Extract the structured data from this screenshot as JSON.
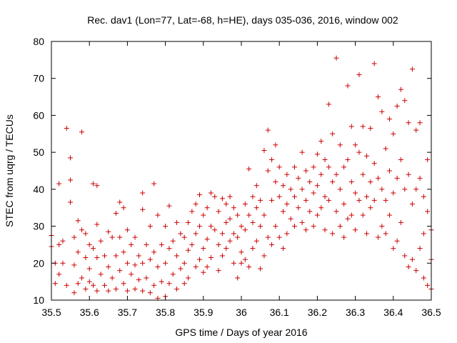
{
  "chart_data": {
    "type": "scatter",
    "title": "Rec. dav1 (Lon=77, Lat=-68, h=HE), days 035-036, 2016, window 002",
    "xlabel": "GPS time / Days of year 2016",
    "ylabel": "STEC from uqrg / TECUs",
    "xlim": [
      35.5,
      36.5
    ],
    "ylim": [
      10,
      80
    ],
    "xticks": [
      35.5,
      35.6,
      35.7,
      35.8,
      35.9,
      36,
      36.1,
      36.2,
      36.3,
      36.4,
      36.5
    ],
    "xtick_labels": [
      "35.5",
      "35.6",
      "35.7",
      "35.8",
      "35.9",
      "36",
      "36.1",
      "36.2",
      "36.3",
      "36.4",
      "36.5"
    ],
    "yticks": [
      10,
      20,
      30,
      40,
      50,
      60,
      70,
      80
    ],
    "ytick_labels": [
      "10",
      "20",
      "30",
      "40",
      "50",
      "60",
      "70",
      "80"
    ],
    "grid": false,
    "legend": "none",
    "marker": "+",
    "color": "#cc0000",
    "series": [
      {
        "points": [
          [
            35.5,
            27.5
          ],
          [
            35.5,
            24.5
          ],
          [
            35.51,
            20
          ],
          [
            35.51,
            14.5
          ],
          [
            35.52,
            41.5
          ],
          [
            35.52,
            25
          ],
          [
            35.52,
            17
          ],
          [
            35.53,
            26
          ],
          [
            35.53,
            20
          ],
          [
            35.54,
            56.5
          ],
          [
            35.54,
            14
          ],
          [
            35.55,
            48.5
          ],
          [
            35.55,
            42.5
          ],
          [
            35.55,
            36.5
          ],
          [
            35.56,
            27
          ],
          [
            35.56,
            19.5
          ],
          [
            35.56,
            12
          ],
          [
            35.57,
            31.5
          ],
          [
            35.57,
            23
          ],
          [
            35.57,
            14.5
          ],
          [
            35.58,
            55.5
          ],
          [
            35.58,
            29
          ],
          [
            35.58,
            16
          ],
          [
            35.59,
            28
          ],
          [
            35.59,
            21.5
          ],
          [
            35.59,
            13
          ],
          [
            35.6,
            25
          ],
          [
            35.6,
            18.5
          ],
          [
            35.6,
            15
          ],
          [
            35.61,
            41.5
          ],
          [
            35.61,
            24
          ],
          [
            35.61,
            14
          ],
          [
            35.62,
            41
          ],
          [
            35.62,
            30.5
          ],
          [
            35.62,
            21.5
          ],
          [
            35.62,
            12.5
          ],
          [
            35.63,
            26
          ],
          [
            35.63,
            17
          ],
          [
            35.64,
            22
          ],
          [
            35.64,
            14
          ],
          [
            35.65,
            28.5
          ],
          [
            35.65,
            19
          ],
          [
            35.65,
            12.5
          ],
          [
            35.66,
            27
          ],
          [
            35.66,
            16
          ],
          [
            35.67,
            33.5
          ],
          [
            35.67,
            22
          ],
          [
            35.67,
            13
          ],
          [
            35.68,
            36.5
          ],
          [
            35.68,
            27
          ],
          [
            35.68,
            18
          ],
          [
            35.69,
            35
          ],
          [
            35.69,
            23
          ],
          [
            35.69,
            14.5
          ],
          [
            35.7,
            29
          ],
          [
            35.7,
            20
          ],
          [
            35.7,
            12.5
          ],
          [
            35.71,
            25
          ],
          [
            35.71,
            17
          ],
          [
            35.72,
            27
          ],
          [
            35.72,
            19.5
          ],
          [
            35.72,
            13
          ],
          [
            35.73,
            22
          ],
          [
            35.73,
            15.5
          ],
          [
            35.74,
            39
          ],
          [
            35.74,
            34.5
          ],
          [
            35.74,
            20
          ],
          [
            35.74,
            12.5
          ],
          [
            35.75,
            25
          ],
          [
            35.75,
            16
          ],
          [
            35.76,
            30
          ],
          [
            35.76,
            21
          ],
          [
            35.76,
            12
          ],
          [
            35.77,
            41.5
          ],
          [
            35.77,
            23
          ],
          [
            35.77,
            14
          ],
          [
            35.78,
            33
          ],
          [
            35.78,
            19
          ],
          [
            35.78,
            10.5
          ],
          [
            35.79,
            25
          ],
          [
            35.79,
            15
          ],
          [
            35.8,
            30
          ],
          [
            35.8,
            20
          ],
          [
            35.8,
            11
          ],
          [
            35.81,
            35.5
          ],
          [
            35.81,
            24
          ],
          [
            35.81,
            14.5
          ],
          [
            35.82,
            26
          ],
          [
            35.82,
            17
          ],
          [
            35.83,
            31
          ],
          [
            35.83,
            22
          ],
          [
            35.83,
            13
          ],
          [
            35.84,
            28
          ],
          [
            35.84,
            18.5
          ],
          [
            35.85,
            27
          ],
          [
            35.85,
            20
          ],
          [
            35.85,
            14.5
          ],
          [
            35.86,
            31
          ],
          [
            35.86,
            23.5
          ],
          [
            35.86,
            16
          ],
          [
            35.87,
            34
          ],
          [
            35.87,
            25
          ],
          [
            35.88,
            36
          ],
          [
            35.88,
            28
          ],
          [
            35.88,
            19
          ],
          [
            35.89,
            38.5
          ],
          [
            35.89,
            30
          ],
          [
            35.89,
            21
          ],
          [
            35.9,
            33
          ],
          [
            35.9,
            24
          ],
          [
            35.9,
            17.5
          ],
          [
            35.91,
            35
          ],
          [
            35.91,
            26.5
          ],
          [
            35.91,
            19
          ],
          [
            35.92,
            39
          ],
          [
            35.92,
            30
          ],
          [
            35.92,
            21.5
          ],
          [
            35.93,
            38
          ],
          [
            35.93,
            29
          ],
          [
            35.94,
            34
          ],
          [
            35.94,
            25
          ],
          [
            35.94,
            18
          ],
          [
            35.95,
            37.5
          ],
          [
            35.95,
            28
          ],
          [
            35.95,
            22
          ],
          [
            35.96,
            36
          ],
          [
            35.96,
            31
          ],
          [
            35.96,
            24
          ],
          [
            35.97,
            38
          ],
          [
            35.97,
            32
          ],
          [
            35.97,
            26
          ],
          [
            35.98,
            35
          ],
          [
            35.98,
            28
          ],
          [
            35.98,
            20
          ],
          [
            35.99,
            33
          ],
          [
            35.99,
            27
          ],
          [
            35.99,
            16
          ],
          [
            36,
            30
          ],
          [
            36,
            23
          ],
          [
            36,
            20
          ],
          [
            36.01,
            36
          ],
          [
            36.01,
            29
          ],
          [
            36.01,
            21
          ],
          [
            36.02,
            45.5
          ],
          [
            36.02,
            33
          ],
          [
            36.02,
            19
          ],
          [
            36.03,
            38
          ],
          [
            36.03,
            31
          ],
          [
            36.03,
            24
          ],
          [
            36.04,
            41
          ],
          [
            36.04,
            35
          ],
          [
            36.04,
            26
          ],
          [
            36.05,
            37
          ],
          [
            36.05,
            30
          ],
          [
            36.05,
            18.5
          ],
          [
            36.06,
            50.5
          ],
          [
            36.06,
            33
          ],
          [
            36.06,
            22
          ],
          [
            36.07,
            56
          ],
          [
            36.07,
            45
          ],
          [
            36.07,
            27
          ],
          [
            36.08,
            48
          ],
          [
            36.08,
            37
          ],
          [
            36.08,
            25
          ],
          [
            36.09,
            52
          ],
          [
            36.09,
            42
          ],
          [
            36.09,
            30
          ],
          [
            36.1,
            46
          ],
          [
            36.1,
            38
          ],
          [
            36.1,
            27
          ],
          [
            36.11,
            41
          ],
          [
            36.11,
            34
          ],
          [
            36.11,
            24
          ],
          [
            36.12,
            44
          ],
          [
            36.12,
            36
          ],
          [
            36.12,
            28
          ],
          [
            36.13,
            40
          ],
          [
            36.13,
            32
          ],
          [
            36.14,
            46
          ],
          [
            36.14,
            38
          ],
          [
            36.14,
            30
          ],
          [
            36.15,
            43
          ],
          [
            36.15,
            35
          ],
          [
            36.16,
            50
          ],
          [
            36.16,
            40
          ],
          [
            36.16,
            31
          ],
          [
            36.17,
            45
          ],
          [
            36.17,
            37
          ],
          [
            36.17,
            29
          ],
          [
            36.18,
            42
          ],
          [
            36.18,
            34
          ],
          [
            36.19,
            46
          ],
          [
            36.19,
            39
          ],
          [
            36.19,
            30
          ],
          [
            36.2,
            49.5
          ],
          [
            36.2,
            41
          ],
          [
            36.2,
            33
          ],
          [
            36.21,
            53
          ],
          [
            36.21,
            44
          ],
          [
            36.21,
            35
          ],
          [
            36.22,
            48
          ],
          [
            36.22,
            38
          ],
          [
            36.22,
            29
          ],
          [
            36.23,
            63
          ],
          [
            36.23,
            46
          ],
          [
            36.23,
            37
          ],
          [
            36.24,
            55
          ],
          [
            36.24,
            42
          ],
          [
            36.24,
            28
          ],
          [
            36.25,
            75.5
          ],
          [
            36.25,
            44
          ],
          [
            36.25,
            34
          ],
          [
            36.26,
            52
          ],
          [
            36.26,
            40
          ],
          [
            36.26,
            30
          ],
          [
            36.27,
            46
          ],
          [
            36.27,
            36
          ],
          [
            36.27,
            27
          ],
          [
            36.28,
            68
          ],
          [
            36.28,
            48
          ],
          [
            36.28,
            32
          ],
          [
            36.29,
            57
          ],
          [
            36.29,
            42
          ],
          [
            36.29,
            33
          ],
          [
            36.3,
            52
          ],
          [
            36.3,
            39
          ],
          [
            36.3,
            29
          ],
          [
            36.31,
            71
          ],
          [
            36.31,
            50
          ],
          [
            36.31,
            37
          ],
          [
            36.32,
            57
          ],
          [
            36.32,
            44
          ],
          [
            36.32,
            33
          ],
          [
            36.33,
            49
          ],
          [
            36.33,
            38
          ],
          [
            36.33,
            28
          ],
          [
            36.34,
            56.5
          ],
          [
            36.34,
            42
          ],
          [
            36.34,
            35
          ],
          [
            36.35,
            74
          ],
          [
            36.35,
            47
          ],
          [
            36.35,
            37
          ],
          [
            36.36,
            65
          ],
          [
            36.36,
            43
          ],
          [
            36.36,
            27
          ],
          [
            36.37,
            61
          ],
          [
            36.37,
            40
          ],
          [
            36.37,
            30
          ],
          [
            36.38,
            51
          ],
          [
            36.38,
            37
          ],
          [
            36.38,
            28
          ],
          [
            36.39,
            59
          ],
          [
            36.39,
            45
          ],
          [
            36.39,
            33
          ],
          [
            36.4,
            55
          ],
          [
            36.4,
            39
          ],
          [
            36.4,
            24
          ],
          [
            36.41,
            62.5
          ],
          [
            36.41,
            43
          ],
          [
            36.41,
            26
          ],
          [
            36.42,
            67
          ],
          [
            36.42,
            48
          ],
          [
            36.42,
            31
          ],
          [
            36.43,
            64
          ],
          [
            36.43,
            40
          ],
          [
            36.43,
            22
          ],
          [
            36.44,
            58
          ],
          [
            36.44,
            44
          ],
          [
            36.44,
            19
          ],
          [
            36.45,
            72.5
          ],
          [
            36.45,
            36
          ],
          [
            36.45,
            21
          ],
          [
            36.46,
            56
          ],
          [
            36.46,
            40
          ],
          [
            36.46,
            18
          ],
          [
            36.47,
            58
          ],
          [
            36.47,
            43
          ],
          [
            36.47,
            24
          ],
          [
            36.48,
            38
          ],
          [
            36.48,
            28
          ],
          [
            36.48,
            16
          ],
          [
            36.49,
            48
          ],
          [
            36.49,
            34
          ],
          [
            36.49,
            14
          ],
          [
            36.5,
            29
          ],
          [
            36.5,
            21
          ],
          [
            36.5,
            13
          ]
        ]
      }
    ]
  }
}
